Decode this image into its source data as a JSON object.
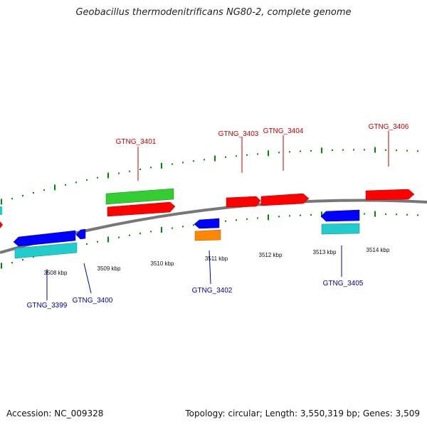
{
  "title": "Geobacillus thermodenitrificans NG80-2, complete genome",
  "footer": {
    "accession": "Accession: NC_009328",
    "summary": "Topology: circular; Length: 3,550,319 bp; Genes: 3,509"
  },
  "kbp_labels": [
    "3508 kbp",
    "3509 kbp",
    "3510 kbp",
    "3511 kbp",
    "3512 kbp",
    "3513 kbp",
    "3514 kbp"
  ],
  "colors": {
    "forward_label": "#cc0000",
    "reverse_label": "#0000aa",
    "backbone": "#888888",
    "tick": "#008800",
    "gene_red": "#ff0000",
    "gene_green": "#33cc33",
    "gene_blue": "#0000ff",
    "gene_cyan": "#22cccc",
    "gene_orange": "#ff8800"
  },
  "genes": [
    {
      "label": "GTNG_3399",
      "strand": "reverse"
    },
    {
      "label": "GTNG_3400",
      "strand": "reverse"
    },
    {
      "label": "GTNG_3401",
      "strand": "forward"
    },
    {
      "label": "GTNG_3402",
      "strand": "reverse"
    },
    {
      "label": "GTNG_3403",
      "strand": "forward"
    },
    {
      "label": "GTNG_3404",
      "strand": "forward"
    },
    {
      "label": "GTNG_3405",
      "strand": "reverse"
    },
    {
      "label": "GTNG_3406",
      "strand": "forward"
    }
  ]
}
